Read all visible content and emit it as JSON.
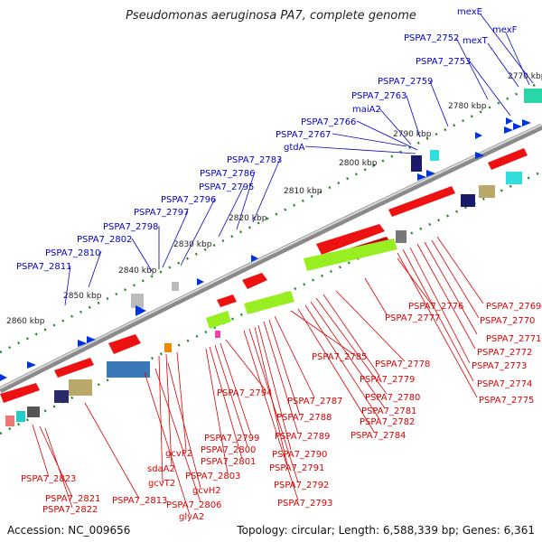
{
  "title": "Pseudomonas aeruginosa PA7, complete genome",
  "footer": {
    "accession": "Accession: NC_009656",
    "topology": "Topology: circular; Length: 6,588,339 bp; Genes: 6,361"
  },
  "colors": {
    "forward_labels": "#0000cc",
    "reverse_labels": "#dd0000",
    "ticks": "#1a8a1a",
    "backbone": "#888888"
  },
  "kbp_ticks": [
    "2770 kbp",
    "2780 kbp",
    "2790 kbp",
    "2800 kbp",
    "2810 kbp",
    "2820 kbp",
    "2830 kbp",
    "2840 kbp",
    "2850 kbp",
    "2860 kbp"
  ],
  "top_labels": [
    "mexE",
    "mexF",
    "mexT",
    "PSPA7_2752",
    "PSPA7_2753",
    "PSPA7_2759",
    "PSPA7_2763",
    "maiA2",
    "PSPA7_2766",
    "PSPA7_2767",
    "gtdA",
    "PSPA7_2783",
    "PSPA7_2786",
    "PSPA7_2795",
    "PSPA7_2796",
    "PSPA7_2797",
    "PSPA7_2798",
    "PSPA7_2802",
    "PSPA7_2810",
    "PSPA7_2811"
  ],
  "bottom_labels": [
    "PSPA7_2769",
    "PSPA7_2770",
    "PSPA7_2771",
    "PSPA7_2772",
    "PSPA7_2773",
    "PSPA7_2774",
    "PSPA7_2775",
    "PSPA7_2776",
    "PSPA7_2777",
    "PSPA7_2778",
    "PSPA7_2779",
    "PSPA7_2780",
    "PSPA7_2781",
    "PSPA7_2782",
    "PSPA7_2784",
    "PSPA7_2785",
    "PSPA7_2787",
    "PSPA7_2788",
    "PSPA7_2789",
    "PSPA7_2790",
    "PSPA7_2791",
    "PSPA7_2792",
    "PSPA7_2793",
    "PSPA7_2794",
    "PSPA7_2799",
    "PSPA7_2800",
    "PSPA7_2801",
    "PSPA7_2803",
    "gcvP2",
    "sdaA2",
    "gcvT2",
    "gcvH2",
    "PSPA7_2806",
    "glyA2",
    "PSPA7_2813",
    "PSPA7_2823",
    "PSPA7_2821",
    "PSPA7_2822"
  ]
}
